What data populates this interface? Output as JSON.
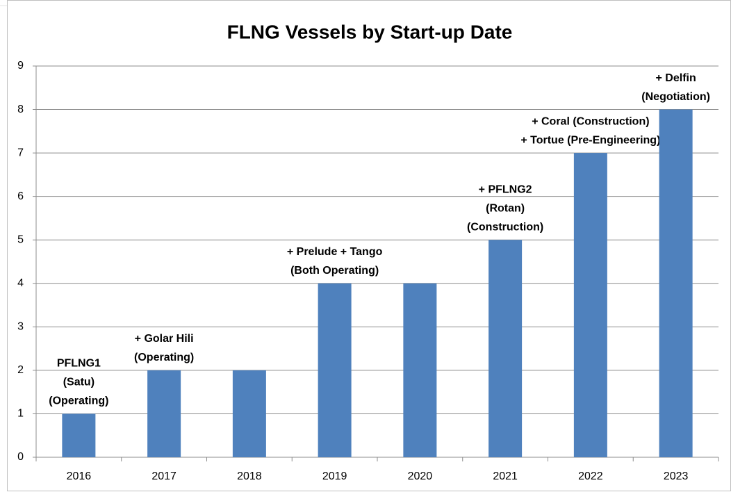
{
  "chart_data": {
    "type": "bar",
    "title": "FLNG Vessels by Start-up Date",
    "categories": [
      "2016",
      "2017",
      "2018",
      "2019",
      "2020",
      "2021",
      "2022",
      "2023"
    ],
    "values": [
      1,
      2,
      2,
      4,
      4,
      5,
      7,
      8
    ],
    "annotations": [
      [
        "PFLNG1",
        "(Satu)",
        "(Operating)"
      ],
      [
        "+ Golar Hili",
        "(Operating)"
      ],
      null,
      [
        "+ Prelude + Tango",
        "(Both Operating)"
      ],
      null,
      [
        "+ PFLNG2",
        "(Rotan)",
        "(Construction)"
      ],
      [
        "+ Coral (Construction)",
        "+ Tortue (Pre-Engineering)"
      ],
      [
        "+ Delfin",
        "(Negotiation)"
      ]
    ],
    "color": "#4f81bd",
    "ylim": [
      0,
      9
    ],
    "yticks": [
      0,
      1,
      2,
      3,
      4,
      5,
      6,
      7,
      8,
      9
    ],
    "grid": true
  }
}
